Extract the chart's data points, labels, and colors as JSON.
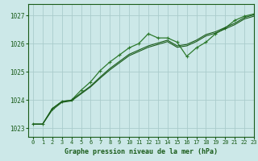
{
  "xlabel": "Graphe pression niveau de la mer (hPa)",
  "xlim": [
    -0.5,
    23
  ],
  "ylim": [
    1022.7,
    1027.4
  ],
  "yticks": [
    1023,
    1024,
    1025,
    1026,
    1027
  ],
  "xticks": [
    0,
    1,
    2,
    3,
    4,
    5,
    6,
    7,
    8,
    9,
    10,
    11,
    12,
    13,
    14,
    15,
    16,
    17,
    18,
    19,
    20,
    21,
    22,
    23
  ],
  "bg_color": "#cce8e8",
  "grid_color": "#aacccc",
  "line_color": "#1a5c1a",
  "line_color2": "#2d7a2d",
  "series1": [
    [
      0,
      1023.15
    ],
    [
      1,
      1023.15
    ],
    [
      2,
      1023.7
    ],
    [
      3,
      1023.95
    ],
    [
      4,
      1024.0
    ],
    [
      5,
      1024.35
    ],
    [
      6,
      1024.65
    ],
    [
      7,
      1025.05
    ],
    [
      8,
      1025.35
    ],
    [
      9,
      1025.6
    ],
    [
      10,
      1025.85
    ],
    [
      11,
      1026.0
    ],
    [
      12,
      1026.35
    ],
    [
      13,
      1026.2
    ],
    [
      14,
      1026.2
    ],
    [
      15,
      1026.05
    ],
    [
      16,
      1025.55
    ],
    [
      17,
      1025.85
    ],
    [
      18,
      1026.05
    ],
    [
      19,
      1026.35
    ],
    [
      20,
      1026.55
    ],
    [
      21,
      1026.82
    ],
    [
      22,
      1026.97
    ],
    [
      23,
      1027.05
    ]
  ],
  "series2": [
    [
      0,
      1023.15
    ],
    [
      1,
      1023.15
    ],
    [
      2,
      1023.7
    ],
    [
      3,
      1023.95
    ],
    [
      4,
      1024.0
    ],
    [
      5,
      1024.25
    ],
    [
      6,
      1024.5
    ],
    [
      7,
      1024.82
    ],
    [
      8,
      1025.12
    ],
    [
      9,
      1025.37
    ],
    [
      10,
      1025.62
    ],
    [
      11,
      1025.77
    ],
    [
      12,
      1025.92
    ],
    [
      13,
      1026.02
    ],
    [
      14,
      1026.12
    ],
    [
      15,
      1025.92
    ],
    [
      16,
      1025.97
    ],
    [
      17,
      1026.12
    ],
    [
      18,
      1026.32
    ],
    [
      19,
      1026.42
    ],
    [
      20,
      1026.57
    ],
    [
      21,
      1026.72
    ],
    [
      22,
      1026.92
    ],
    [
      23,
      1027.02
    ]
  ],
  "series3": [
    [
      0,
      1023.15
    ],
    [
      1,
      1023.15
    ],
    [
      2,
      1023.65
    ],
    [
      3,
      1023.92
    ],
    [
      4,
      1023.97
    ],
    [
      5,
      1024.22
    ],
    [
      6,
      1024.47
    ],
    [
      7,
      1024.78
    ],
    [
      8,
      1025.07
    ],
    [
      9,
      1025.32
    ],
    [
      10,
      1025.57
    ],
    [
      11,
      1025.72
    ],
    [
      12,
      1025.87
    ],
    [
      13,
      1025.97
    ],
    [
      14,
      1026.07
    ],
    [
      15,
      1025.87
    ],
    [
      16,
      1025.92
    ],
    [
      17,
      1026.07
    ],
    [
      18,
      1026.27
    ],
    [
      19,
      1026.37
    ],
    [
      20,
      1026.52
    ],
    [
      21,
      1026.67
    ],
    [
      22,
      1026.87
    ],
    [
      23,
      1026.97
    ]
  ]
}
